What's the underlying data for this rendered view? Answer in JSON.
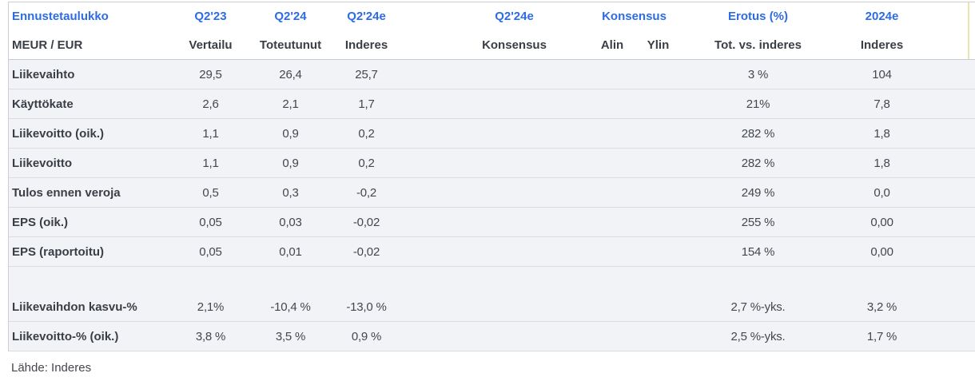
{
  "colors": {
    "header_blue": "#2d6ce5",
    "label_dark": "#3a3e45",
    "value_gray": "#43474e",
    "row_bg": "#f2f3f7",
    "row_separator": "#dadce2",
    "frame_border": "#cccfd5",
    "header_accent_edge": "#eae7ad"
  },
  "header": {
    "row1": {
      "title": "Ennustetaulukko",
      "col2": "Q2'23",
      "col3": "Q2'24",
      "col4": "Q2'24e",
      "col5": "Q2'24e",
      "konsensus_group": "Konsensus",
      "col8": "Erotus (%)",
      "col9": "2024e"
    },
    "row2": {
      "unit_label": "MEUR / EUR",
      "col2": "Vertailu",
      "col3": "Toteutunut",
      "col4": "Inderes",
      "col5": "Konsensus",
      "col6": "Alin",
      "col7": "Ylin",
      "col8": "Tot. vs. inderes",
      "col9": "Inderes"
    }
  },
  "rows": [
    {
      "spacer": false,
      "cells": [
        "Liikevaihto",
        "29,5",
        "26,4",
        "25,7",
        "",
        "",
        "",
        "3 %",
        "104"
      ]
    },
    {
      "spacer": false,
      "cells": [
        "Käyttökate",
        "2,6",
        "2,1",
        "1,7",
        "",
        "",
        "",
        "21%",
        "7,8"
      ]
    },
    {
      "spacer": false,
      "cells": [
        "Liikevoitto (oik.)",
        "1,1",
        "0,9",
        "0,2",
        "",
        "",
        "",
        "282 %",
        "1,8"
      ]
    },
    {
      "spacer": false,
      "cells": [
        "Liikevoitto",
        "1,1",
        "0,9",
        "0,2",
        "",
        "",
        "",
        "282 %",
        "1,8"
      ]
    },
    {
      "spacer": false,
      "cells": [
        "Tulos ennen veroja",
        "0,5",
        "0,3",
        "-0,2",
        "",
        "",
        "",
        "249 %",
        "0,0"
      ]
    },
    {
      "spacer": false,
      "cells": [
        "EPS (oik.)",
        "0,05",
        "0,03",
        "-0,02",
        "",
        "",
        "",
        "255 %",
        "0,00"
      ]
    },
    {
      "spacer": false,
      "cells": [
        "EPS (raportoitu)",
        "0,05",
        "0,01",
        "-0,02",
        "",
        "",
        "",
        "154 %",
        "0,00"
      ]
    },
    {
      "spacer": true,
      "cells": [
        "",
        "",
        "",
        "",
        "",
        "",
        "",
        "",
        ""
      ]
    },
    {
      "spacer": false,
      "cells": [
        "Liikevaihdon kasvu-%",
        "2,1%",
        "-10,4 %",
        "-13,0 %",
        "",
        "",
        "",
        "2,7 %-yks.",
        "3,2 %"
      ]
    },
    {
      "spacer": false,
      "cells": [
        "Liikevoitto-% (oik.)",
        "3,8 %",
        "3,5 %",
        "0,9 %",
        "",
        "",
        "",
        "2,5 %-yks.",
        "1,7 %"
      ]
    }
  ],
  "footer": {
    "source_label": "Lähde: Inderes"
  }
}
